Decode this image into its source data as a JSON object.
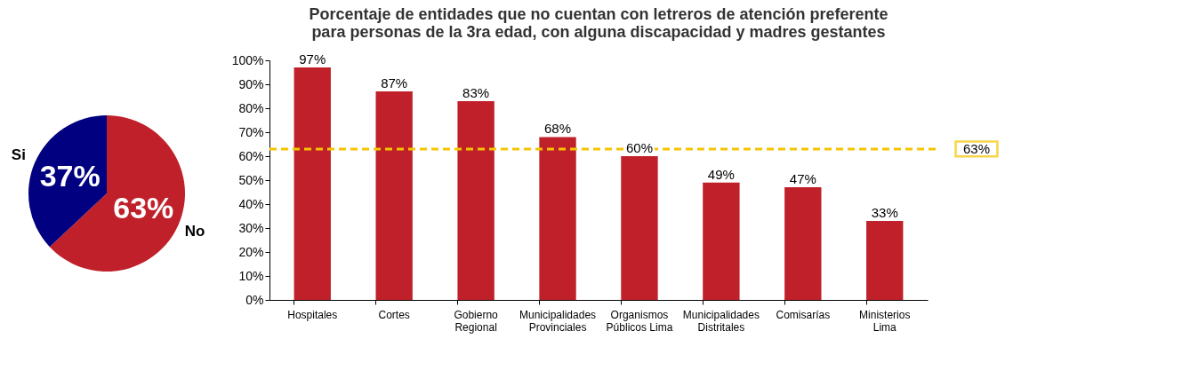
{
  "chart_data": [
    {
      "type": "pie",
      "categories": [
        "No",
        "Si"
      ],
      "values": [
        63,
        37
      ],
      "colors": [
        "#c0202a",
        "#000080"
      ],
      "value_labels": [
        "63%",
        "37%"
      ],
      "legend": false
    },
    {
      "type": "bar",
      "title": "Porcentaje de entidades que no cuentan con letreros de atención preferente para personas de la 3ra edad, con alguna discapacidad y madres gestantes",
      "categories": [
        "Hospitales",
        "Cortes",
        "Gobierno Regional",
        "Municipalidades Provinciales",
        "Organismos Públicos Lima",
        "Municipalidades Distritales",
        "Comisarías",
        "Ministerios Lima"
      ],
      "values": [
        97,
        87,
        83,
        68,
        60,
        49,
        47,
        33
      ],
      "color": "#c0202a",
      "value_labels": [
        "97%",
        "87%",
        "83%",
        "68%",
        "60%",
        "49%",
        "47%",
        "33%"
      ],
      "ylim": [
        0,
        100
      ],
      "yticks": [
        {
          "value": 0,
          "label": "0%"
        },
        {
          "value": 10,
          "label": "10%"
        },
        {
          "value": 20,
          "label": "20%"
        },
        {
          "value": 30,
          "label": "30%"
        },
        {
          "value": 40,
          "label": "40%"
        },
        {
          "value": 50,
          "label": "50%"
        },
        {
          "value": 60,
          "label": "60%"
        },
        {
          "value": 70,
          "label": "70%"
        },
        {
          "value": 80,
          "label": "80%"
        },
        {
          "value": 90,
          "label": "90%"
        },
        {
          "value": 100,
          "label": "100%"
        }
      ],
      "ref_lines": [
        {
          "axis": "y",
          "value": 63,
          "label": "63%",
          "color": "#f5c400",
          "line_style": "dashed"
        }
      ],
      "grid": false,
      "legend": false
    }
  ]
}
